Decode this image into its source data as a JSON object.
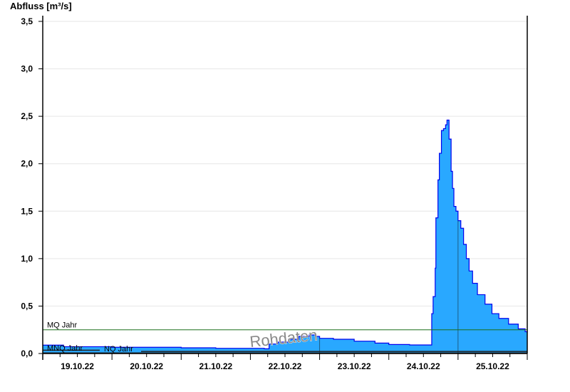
{
  "chart_data": {
    "type": "area",
    "title": "Abfluss [m³/s]",
    "xlabel": "",
    "ylabel": "Abfluss [m³/s]",
    "ylim": [
      0,
      3.5
    ],
    "yticks": [
      0,
      0.5,
      1.0,
      1.5,
      2.0,
      2.5,
      3.0,
      3.5
    ],
    "ytick_labels": [
      "0,0",
      "0,5",
      "1,0",
      "1,5",
      "2,0",
      "2,5",
      "3,0",
      "3,5"
    ],
    "xlim_days": [
      0,
      7
    ],
    "x_start_date": "19.10.22",
    "xtick_labels": [
      "19.10.22",
      "20.10.22",
      "21.10.22",
      "22.10.22",
      "23.10.22",
      "24.10.22",
      "25.10.22"
    ],
    "grid": "horizontal",
    "watermark": "Rohdaten",
    "colors": {
      "fill": "#29a8ff",
      "line": "#0000ee",
      "ref_line": "#1a6e1a",
      "grid": "#e6e6e6"
    },
    "reference_lines": [
      {
        "label": "MQ Jahr",
        "value": 0.25
      },
      {
        "label": "MNQ Jahr",
        "value": 0.035
      },
      {
        "label": "NQ Jahr",
        "value": 0.022
      }
    ],
    "series": [
      {
        "points": [
          [
            0,
            0.088
          ],
          [
            0.3,
            0.072
          ],
          [
            1,
            0.066
          ],
          [
            2,
            0.06
          ],
          [
            2.5,
            0.055
          ],
          [
            3.2,
            0.05
          ],
          [
            3.22,
            0.05
          ],
          [
            3.27,
            0.1
          ],
          [
            3.4,
            0.12
          ],
          [
            3.55,
            0.15
          ],
          [
            3.7,
            0.18
          ],
          [
            3.85,
            0.195
          ],
          [
            3.95,
            0.18
          ],
          [
            4.0,
            0.16
          ],
          [
            4.2,
            0.15
          ],
          [
            4.5,
            0.13
          ],
          [
            4.8,
            0.11
          ],
          [
            5.0,
            0.095
          ],
          [
            5.3,
            0.09
          ],
          [
            5.59,
            0.09
          ],
          [
            5.62,
            0.42
          ],
          [
            5.64,
            0.6
          ],
          [
            5.67,
            0.9
          ],
          [
            5.68,
            1.43
          ],
          [
            5.71,
            1.83
          ],
          [
            5.73,
            2.11
          ],
          [
            5.76,
            2.35
          ],
          [
            5.79,
            2.37
          ],
          [
            5.82,
            2.41
          ],
          [
            5.84,
            2.46
          ],
          [
            5.87,
            2.26
          ],
          [
            5.9,
            1.92
          ],
          [
            5.92,
            1.74
          ],
          [
            5.94,
            1.55
          ],
          [
            5.97,
            1.5
          ],
          [
            6.0,
            1.4
          ],
          [
            6.04,
            1.32
          ],
          [
            6.08,
            1.15
          ],
          [
            6.12,
            1.0
          ],
          [
            6.16,
            0.87
          ],
          [
            6.21,
            0.74
          ],
          [
            6.28,
            0.62
          ],
          [
            6.39,
            0.52
          ],
          [
            6.49,
            0.42
          ],
          [
            6.59,
            0.37
          ],
          [
            6.73,
            0.31
          ],
          [
            6.87,
            0.26
          ],
          [
            6.97,
            0.23
          ],
          [
            7.0,
            0.22
          ]
        ]
      }
    ]
  }
}
